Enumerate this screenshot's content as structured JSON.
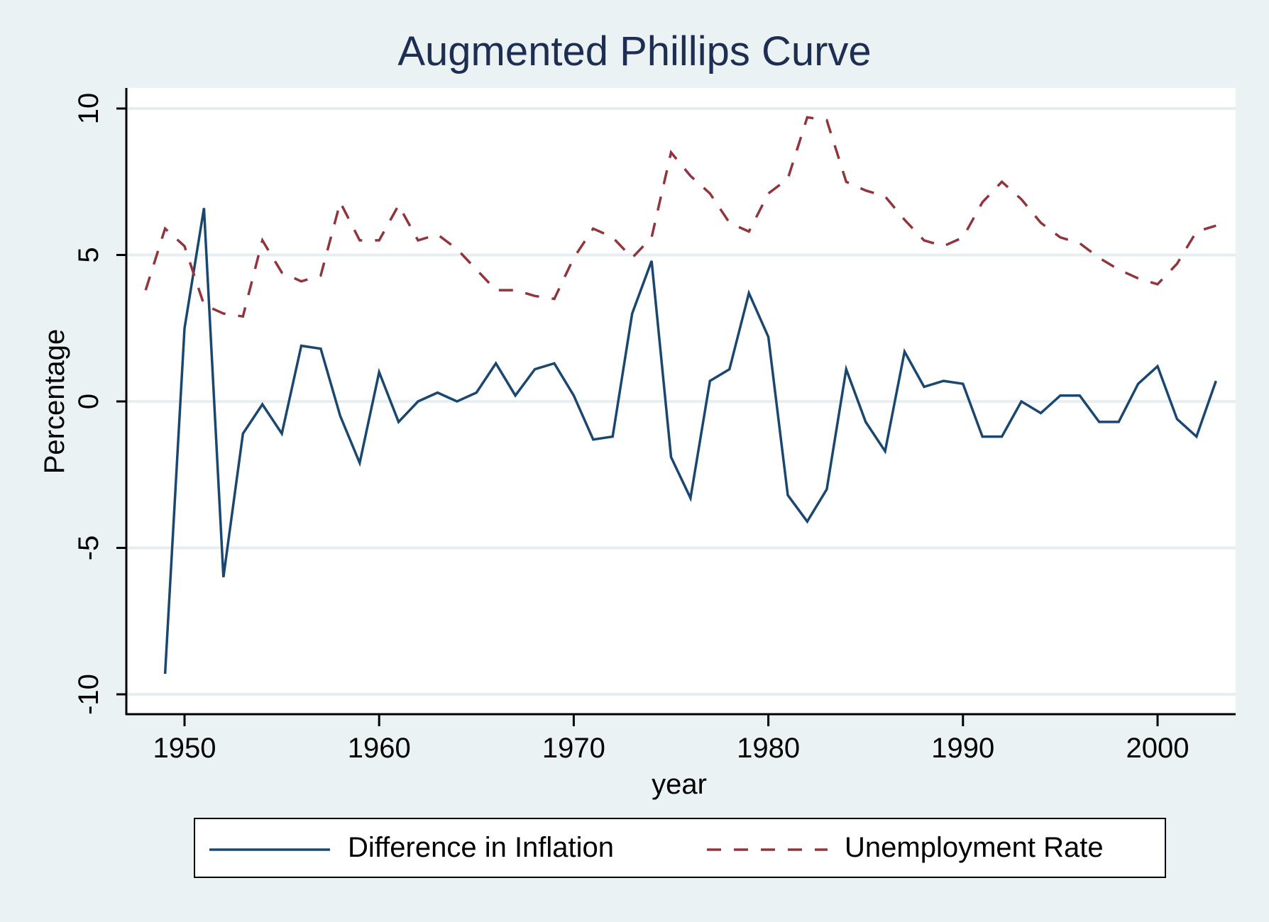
{
  "title": "Augmented Phillips Curve",
  "colors": {
    "background": "#eaf2f3",
    "plot_background": "#ffffff",
    "gridline": "#e6eef1",
    "title": "#1e2d52",
    "series_inflation": "#1a476f",
    "series_unemployment": "#90353b"
  },
  "axes": {
    "x_title": "year",
    "y_title": "Percentage",
    "x_ticks": [
      "1950",
      "1960",
      "1970",
      "1980",
      "1990",
      "2000"
    ],
    "y_ticks": [
      "-10",
      "-5",
      "0",
      "5",
      "10"
    ]
  },
  "legend": {
    "items": [
      {
        "label": "Difference in Inflation",
        "style": "solid"
      },
      {
        "label": "Unemployment Rate",
        "style": "dashed"
      }
    ]
  },
  "chart_data": {
    "type": "line",
    "title": "Augmented Phillips Curve",
    "xlabel": "year",
    "ylabel": "Percentage",
    "xlim": [
      1947,
      2004
    ],
    "ylim": [
      -10.7,
      10.7
    ],
    "grid": true,
    "legend_position": "bottom",
    "x_ticks": [
      1950,
      1960,
      1970,
      1980,
      1990,
      2000
    ],
    "y_ticks": [
      -10,
      -5,
      0,
      5,
      10
    ],
    "series": [
      {
        "name": "Difference in Inflation",
        "style": "solid",
        "color": "#1a476f",
        "x": [
          1949,
          1950,
          1951,
          1952,
          1953,
          1954,
          1955,
          1956,
          1957,
          1958,
          1959,
          1960,
          1961,
          1962,
          1963,
          1964,
          1965,
          1966,
          1967,
          1968,
          1969,
          1970,
          1971,
          1972,
          1973,
          1974,
          1975,
          1976,
          1977,
          1978,
          1979,
          1980,
          1981,
          1982,
          1983,
          1984,
          1985,
          1986,
          1987,
          1988,
          1989,
          1990,
          1991,
          1992,
          1993,
          1994,
          1995,
          1996,
          1997,
          1998,
          1999,
          2000,
          2001,
          2002,
          2003
        ],
        "values": [
          -9.3,
          2.5,
          6.6,
          -6.0,
          -1.1,
          -0.1,
          -1.1,
          1.9,
          1.8,
          -0.5,
          -2.1,
          1.0,
          -0.7,
          0.0,
          0.3,
          0.0,
          0.3,
          1.3,
          0.2,
          1.1,
          1.3,
          0.2,
          -1.3,
          -1.2,
          3.0,
          4.8,
          -1.9,
          -3.3,
          0.7,
          1.1,
          3.7,
          2.2,
          -3.2,
          -4.1,
          -3.0,
          1.1,
          -0.7,
          -1.7,
          1.7,
          0.5,
          0.7,
          0.6,
          -1.2,
          -1.2,
          0.0,
          -0.4,
          0.2,
          0.2,
          -0.7,
          -0.7,
          0.6,
          1.2,
          -0.6,
          -1.2,
          0.7
        ]
      },
      {
        "name": "Unemployment Rate",
        "style": "dashed",
        "color": "#90353b",
        "x": [
          1948,
          1949,
          1950,
          1951,
          1952,
          1953,
          1954,
          1955,
          1956,
          1957,
          1958,
          1959,
          1960,
          1961,
          1962,
          1963,
          1964,
          1965,
          1966,
          1967,
          1968,
          1969,
          1970,
          1971,
          1972,
          1973,
          1974,
          1975,
          1976,
          1977,
          1978,
          1979,
          1980,
          1981,
          1982,
          1983,
          1984,
          1985,
          1986,
          1987,
          1988,
          1989,
          1990,
          1991,
          1992,
          1993,
          1994,
          1995,
          1996,
          1997,
          1998,
          1999,
          2000,
          2001,
          2002,
          2003
        ],
        "values": [
          3.8,
          5.9,
          5.3,
          3.3,
          3.0,
          2.9,
          5.5,
          4.4,
          4.1,
          4.3,
          6.8,
          5.5,
          5.5,
          6.7,
          5.5,
          5.7,
          5.2,
          4.5,
          3.8,
          3.8,
          3.6,
          3.5,
          4.9,
          5.9,
          5.6,
          4.9,
          5.6,
          8.5,
          7.7,
          7.1,
          6.1,
          5.8,
          7.1,
          7.6,
          9.7,
          9.6,
          7.5,
          7.2,
          7.0,
          6.2,
          5.5,
          5.3,
          5.6,
          6.8,
          7.5,
          6.9,
          6.1,
          5.6,
          5.4,
          4.9,
          4.5,
          4.2,
          4.0,
          4.7,
          5.8,
          6.0
        ]
      }
    ]
  }
}
